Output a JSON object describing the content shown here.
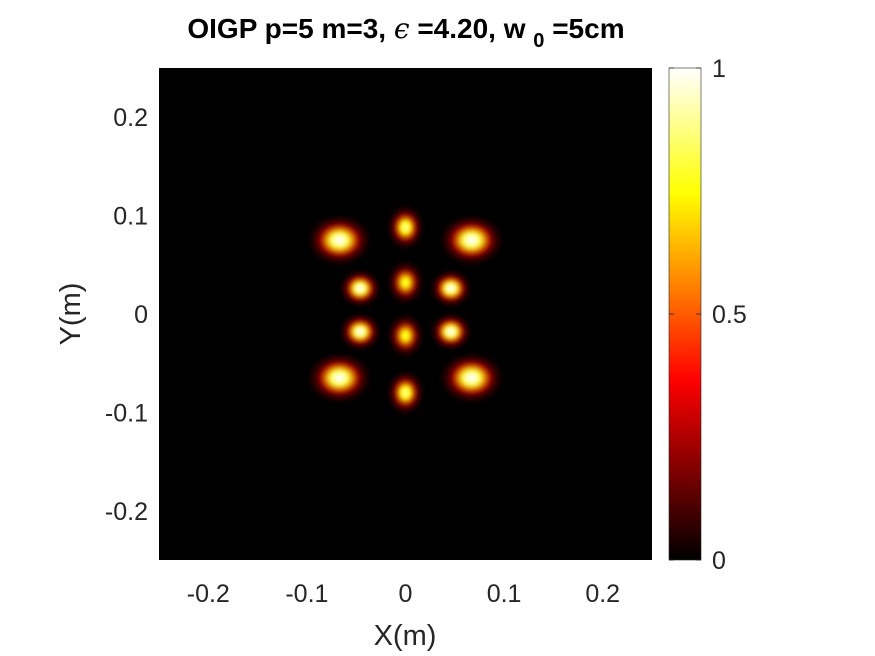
{
  "chart_data": {
    "type": "heatmap",
    "title": {
      "main": "OIGP p=5 m=3,",
      "epsilon_symbol": "ϵ",
      "epsilon_text": " =4.20, w",
      "w0_subscript": "0",
      "w0_text": "=5cm"
    },
    "xlabel": "X(m)",
    "ylabel": "Y(m)",
    "xlim": [
      -0.25,
      0.25
    ],
    "ylim": [
      -0.25,
      0.25
    ],
    "xticks": [
      -0.2,
      -0.1,
      0,
      0.1,
      0.2
    ],
    "xtick_labels": [
      "-0.2",
      "-0.1",
      "0",
      "0.1",
      "0.2"
    ],
    "yticks": [
      0.2,
      0.1,
      0,
      -0.1,
      -0.2
    ],
    "ytick_labels": [
      "0.2",
      "0.1",
      "0",
      "-0.1",
      "-0.2"
    ],
    "colormap": "hot",
    "colorbar": {
      "range": [
        0,
        1
      ],
      "ticks": [
        0,
        0.5,
        1
      ],
      "tick_labels": [
        "0",
        "0.5",
        "1"
      ]
    },
    "background_value": 0,
    "lobes": [
      {
        "x": -0.067,
        "y": 0.075,
        "peak": 1.0
      },
      {
        "x": 0.067,
        "y": 0.075,
        "peak": 1.0
      },
      {
        "x": -0.067,
        "y": -0.065,
        "peak": 1.0
      },
      {
        "x": 0.067,
        "y": -0.065,
        "peak": 1.0
      },
      {
        "x": 0.0,
        "y": 0.088,
        "peak": 0.88
      },
      {
        "x": 0.0,
        "y": -0.08,
        "peak": 0.88
      },
      {
        "x": -0.046,
        "y": 0.026,
        "peak": 1.0
      },
      {
        "x": 0.046,
        "y": 0.026,
        "peak": 1.0
      },
      {
        "x": -0.046,
        "y": -0.018,
        "peak": 1.0
      },
      {
        "x": 0.046,
        "y": -0.018,
        "peak": 1.0
      },
      {
        "x": 0.0,
        "y": 0.032,
        "peak": 0.8
      },
      {
        "x": 0.0,
        "y": -0.022,
        "peak": 0.8
      }
    ],
    "grid": false,
    "legend": "none"
  }
}
